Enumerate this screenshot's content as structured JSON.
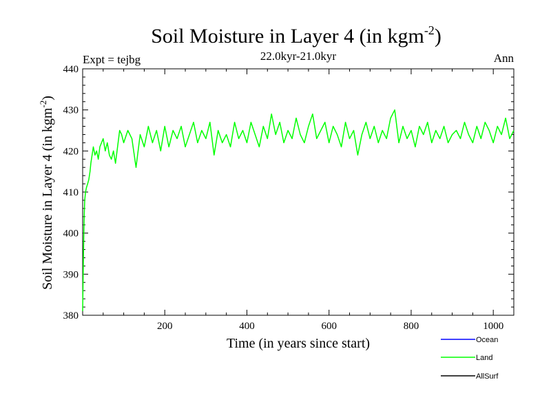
{
  "chart_data": {
    "type": "line",
    "title_main": "Soil Moisture in Layer 4 (in kgm",
    "title_sup": "-2",
    "title_close": ")",
    "subtitle": "22.0kyr-21.0kyr",
    "left_label": "Expt = tejbg",
    "right_label": "Ann",
    "xlabel": "Time (in years since start)",
    "ylabel_main": "Soil Moisture in Layer 4 (in kgm",
    "ylabel_sup": "-2",
    "ylabel_close": ")",
    "xlim": [
      0,
      1050
    ],
    "ylim": [
      380,
      440
    ],
    "x_ticks": [
      200,
      400,
      600,
      800,
      1000
    ],
    "y_ticks": [
      380,
      390,
      400,
      410,
      420,
      430,
      440
    ],
    "grid": false,
    "legend_position": "bottom-right",
    "series": [
      {
        "name": "Ocean",
        "color": "#0000ff",
        "x": [],
        "y": []
      },
      {
        "name": "Land",
        "color": "#00ff00",
        "x": [
          0,
          1,
          2,
          3,
          4,
          5,
          7,
          9,
          12,
          15,
          18,
          20,
          23,
          26,
          30,
          34,
          38,
          42,
          46,
          50,
          55,
          60,
          65,
          70,
          75,
          80,
          85,
          90,
          95,
          100,
          110,
          120,
          130,
          140,
          150,
          160,
          170,
          180,
          190,
          200,
          210,
          220,
          230,
          240,
          250,
          260,
          270,
          280,
          290,
          300,
          310,
          320,
          330,
          340,
          350,
          360,
          370,
          380,
          390,
          400,
          410,
          420,
          430,
          440,
          450,
          460,
          470,
          480,
          490,
          500,
          510,
          520,
          530,
          540,
          550,
          560,
          570,
          580,
          590,
          600,
          610,
          620,
          630,
          640,
          650,
          660,
          670,
          680,
          690,
          700,
          710,
          720,
          730,
          740,
          750,
          760,
          770,
          780,
          790,
          800,
          810,
          820,
          830,
          840,
          850,
          860,
          870,
          880,
          890,
          900,
          910,
          920,
          930,
          940,
          950,
          960,
          970,
          980,
          990,
          1000,
          1010,
          1020,
          1030,
          1040,
          1050
        ],
        "y": [
          381,
          388,
          395,
          401,
          405,
          408,
          410,
          411,
          412,
          413,
          415,
          417,
          419,
          421,
          419,
          420,
          418,
          421,
          422,
          423,
          420,
          422,
          419,
          418,
          420,
          417,
          421,
          425,
          424,
          422,
          425,
          423,
          416,
          424,
          421,
          426,
          422,
          425,
          420,
          426,
          421,
          425,
          423,
          426,
          421,
          424,
          427,
          422,
          425,
          423,
          427,
          419,
          425,
          422,
          424,
          421,
          427,
          423,
          425,
          422,
          427,
          424,
          421,
          426,
          423,
          429,
          424,
          427,
          422,
          425,
          423,
          428,
          424,
          422,
          426,
          429,
          423,
          425,
          427,
          422,
          426,
          424,
          421,
          427,
          423,
          425,
          419,
          424,
          427,
          423,
          426,
          422,
          425,
          423,
          428,
          430,
          422,
          426,
          423,
          425,
          421,
          426,
          424,
          427,
          422,
          425,
          423,
          426,
          422,
          424,
          425,
          423,
          427,
          424,
          422,
          426,
          423,
          427,
          425,
          422,
          426,
          424,
          428,
          423,
          425
        ]
      },
      {
        "name": "AllSurf",
        "color": "#000000",
        "x": [],
        "y": []
      }
    ]
  }
}
